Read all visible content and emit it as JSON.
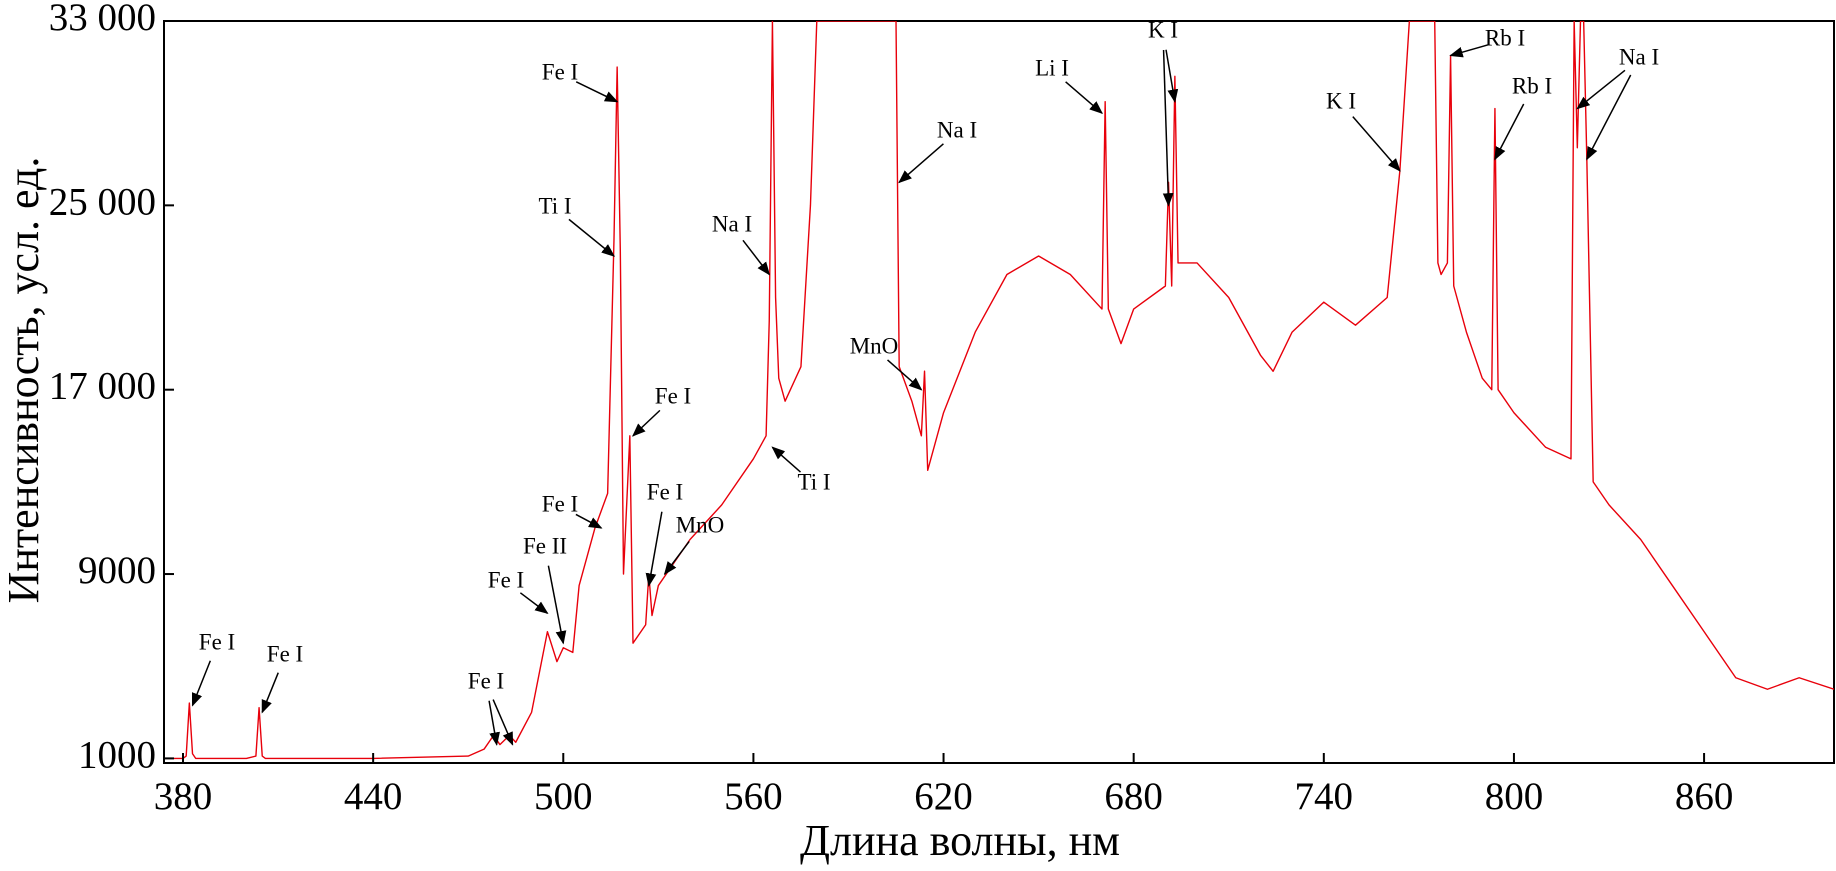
{
  "chart_data": {
    "type": "line",
    "xlabel": "Длина волны, нм",
    "ylabel": "Интенсивность, усл. ед.",
    "color": "#e8000b",
    "xlim": [
      374,
      901
    ],
    "ylim": [
      800,
      33000
    ],
    "xticks": [
      380,
      440,
      500,
      560,
      620,
      680,
      740,
      800,
      860
    ],
    "yticks": [
      1000,
      9000,
      {
        "value": 17000,
        "label": "17 000"
      },
      {
        "value": 25000,
        "label": "25 000"
      },
      {
        "value": 33000,
        "label": "33 000"
      }
    ],
    "x": [
      374,
      380,
      381,
      382,
      383,
      384,
      400,
      403,
      404,
      405,
      406,
      440,
      470,
      475,
      478,
      480,
      483,
      485,
      490,
      495,
      498,
      500,
      503,
      505,
      510,
      514,
      516,
      517,
      518,
      519,
      520,
      521,
      522,
      523,
      526,
      527,
      528,
      530,
      535,
      540,
      550,
      560,
      564,
      565,
      566,
      567,
      568,
      570,
      575,
      578,
      580,
      605,
      606,
      610,
      613,
      614,
      615,
      620,
      630,
      640,
      650,
      660,
      670,
      671,
      672,
      676,
      680,
      690,
      691,
      692,
      693,
      694,
      700,
      710,
      720,
      724,
      730,
      740,
      750,
      760,
      764,
      767,
      775,
      776,
      777,
      779,
      780,
      781,
      785,
      790,
      793,
      794,
      795,
      800,
      810,
      818,
      819,
      820,
      821,
      822,
      823,
      825,
      830,
      840,
      850,
      860,
      870,
      880,
      890,
      901
    ],
    "values": [
      1000,
      1000,
      1100,
      3400,
      1200,
      1000,
      1000,
      1100,
      3200,
      1100,
      1000,
      1000,
      1100,
      1400,
      2000,
      1600,
      2000,
      1700,
      3000,
      6500,
      5200,
      5800,
      5600,
      8500,
      11000,
      12500,
      23500,
      31000,
      23000,
      9000,
      12000,
      15000,
      6000,
      6200,
      6800,
      9000,
      7200,
      8500,
      9500,
      10500,
      12000,
      14000,
      15000,
      20000,
      33000,
      21000,
      17500,
      16500,
      18000,
      25000,
      33000,
      33000,
      18000,
      16500,
      15000,
      17800,
      13500,
      16000,
      19500,
      22000,
      22800,
      22000,
      20500,
      29500,
      20500,
      19000,
      20500,
      21500,
      26000,
      21500,
      30600,
      22500,
      22500,
      21000,
      18500,
      17800,
      19500,
      20800,
      19800,
      21000,
      26500,
      33000,
      33000,
      22500,
      22000,
      22500,
      31500,
      21500,
      19500,
      17500,
      17000,
      29200,
      17000,
      16000,
      14500,
      14000,
      33000,
      27500,
      33000,
      33000,
      27000,
      13000,
      12000,
      10500,
      8500,
      6500,
      4500,
      4000,
      4500,
      4000
    ],
    "annotations": [
      {
        "text": "Fe I",
        "points": [
          [
            383,
            3300
          ]
        ]
      },
      {
        "text": "Fe I",
        "points": [
          [
            405,
            3000
          ]
        ]
      },
      {
        "text": "Fe I",
        "points": [
          [
            479,
            1600
          ],
          [
            484,
            1600
          ]
        ]
      },
      {
        "text": "Fe I",
        "points": [
          [
            495,
            7300
          ]
        ]
      },
      {
        "text": "Fe II",
        "points": [
          [
            500,
            6000
          ]
        ]
      },
      {
        "text": "Fe I",
        "points": [
          [
            512,
            11000
          ]
        ]
      },
      {
        "text": "Ti I",
        "points": [
          [
            516,
            22800
          ]
        ]
      },
      {
        "text": "Fe I",
        "points": [
          [
            517,
            29500
          ]
        ]
      },
      {
        "text": "Fe I",
        "points": [
          [
            522,
            15000
          ]
        ]
      },
      {
        "text": "Fe I",
        "points": [
          [
            527,
            8500
          ]
        ]
      },
      {
        "text": "MnO",
        "points": [
          [
            532,
            9000
          ]
        ]
      },
      {
        "text": "Na I",
        "points": [
          [
            565,
            22000
          ]
        ]
      },
      {
        "text": "Ti I",
        "points": [
          [
            566,
            14500
          ]
        ]
      },
      {
        "text": "Na I",
        "points": [
          [
            606,
            26000
          ]
        ]
      },
      {
        "text": "MnO",
        "points": [
          [
            613,
            17000
          ]
        ]
      },
      {
        "text": "Li I",
        "points": [
          [
            670,
            29000
          ]
        ]
      },
      {
        "text": "K I",
        "points": [
          [
            691,
            25000
          ],
          [
            693,
            29500
          ]
        ]
      },
      {
        "text": "K I",
        "points": [
          [
            764,
            26500
          ]
        ]
      },
      {
        "text": "Rb I",
        "points": [
          [
            780,
            31500
          ]
        ]
      },
      {
        "text": "Rb I",
        "points": [
          [
            794,
            27000
          ]
        ]
      },
      {
        "text": "Na I",
        "points": [
          [
            820,
            29200
          ],
          [
            823,
            27000
          ]
        ]
      }
    ]
  }
}
